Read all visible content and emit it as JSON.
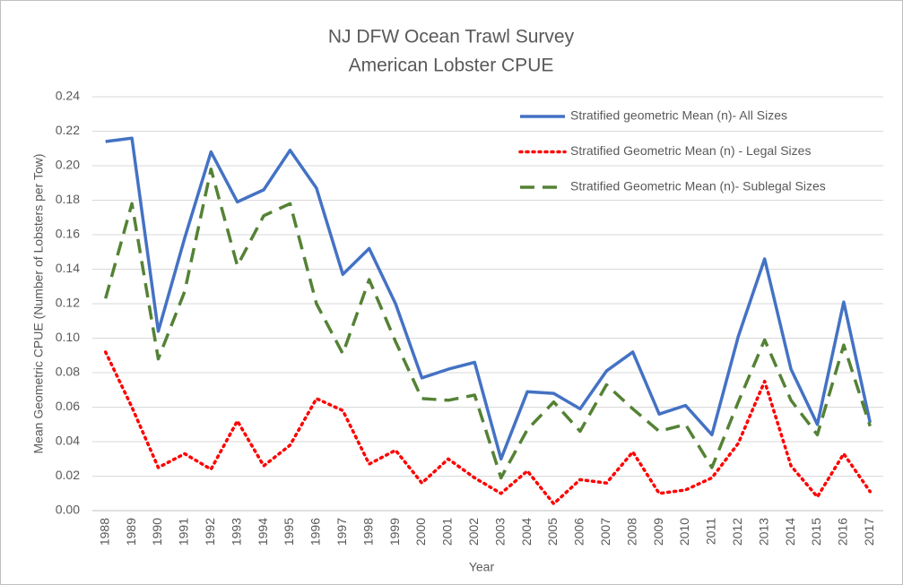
{
  "chart_data": {
    "type": "line",
    "title": "NJ DFW Ocean Trawl Survey",
    "subtitle": "American Lobster CPUE",
    "x_label": "Year",
    "y_label": "Mean Geometric CPUE (Number of Lobsters per Tow)",
    "categories": [
      "1988",
      "1989",
      "1990",
      "1991",
      "1992",
      "1993",
      "1994",
      "1995",
      "1996",
      "1997",
      "1998",
      "1999",
      "2000",
      "2001",
      "2002",
      "2003",
      "2004",
      "2005",
      "2006",
      "2007",
      "2008",
      "2009",
      "2010",
      "2011",
      "2012",
      "2013",
      "2014",
      "2015",
      "2016",
      "2017"
    ],
    "series": [
      {
        "name": "Stratified geometric Mean (n)- All Sizes",
        "color": "#4472c4",
        "style": "solid",
        "values": [
          0.214,
          0.216,
          0.104,
          0.158,
          0.208,
          0.179,
          0.186,
          0.209,
          0.187,
          0.137,
          0.152,
          0.12,
          0.077,
          0.082,
          0.086,
          0.03,
          0.069,
          0.068,
          0.059,
          0.081,
          0.092,
          0.056,
          0.061,
          0.044,
          0.101,
          0.146,
          0.082,
          0.05,
          0.121,
          0.051
        ]
      },
      {
        "name": "Stratified Geometric Mean (n) - Legal Sizes",
        "color": "#ff0000",
        "style": "dotted",
        "values": [
          0.092,
          0.06,
          0.025,
          0.033,
          0.024,
          0.052,
          0.026,
          0.038,
          0.065,
          0.058,
          0.027,
          0.035,
          0.016,
          0.03,
          0.019,
          0.01,
          0.023,
          0.004,
          0.018,
          0.016,
          0.034,
          0.01,
          0.012,
          0.019,
          0.039,
          0.075,
          0.026,
          0.008,
          0.033,
          0.011
        ]
      },
      {
        "name": "Stratified Geometric Mean (n)- Sublegal Sizes",
        "color": "#548235",
        "style": "dashed",
        "values": [
          0.123,
          0.178,
          0.088,
          0.127,
          0.198,
          0.142,
          0.171,
          0.178,
          0.12,
          0.091,
          0.134,
          0.098,
          0.065,
          0.064,
          0.067,
          0.019,
          0.047,
          0.063,
          0.046,
          0.073,
          0.059,
          0.046,
          0.05,
          0.025,
          0.063,
          0.099,
          0.064,
          0.044,
          0.096,
          0.049
        ]
      }
    ],
    "ylim": [
      0,
      0.24
    ],
    "yticks": [
      {
        "value": 0,
        "label": "0.00"
      },
      {
        "value": 0.02,
        "label": "0.02"
      },
      {
        "value": 0.04,
        "label": "0.04"
      },
      {
        "value": 0.06,
        "label": "0.06"
      },
      {
        "value": 0.08,
        "label": "0.08"
      },
      {
        "value": 0.1,
        "label": "0.10"
      },
      {
        "value": 0.12,
        "label": "0.12"
      },
      {
        "value": 0.14,
        "label": "0.14"
      },
      {
        "value": 0.16,
        "label": "0.16"
      },
      {
        "value": 0.18,
        "label": "0.18"
      },
      {
        "value": 0.2,
        "label": "0.20"
      },
      {
        "value": 0.22,
        "label": "0.22"
      },
      {
        "value": 0.24,
        "label": "0.24"
      }
    ],
    "grid": true,
    "legend": "top-right"
  }
}
